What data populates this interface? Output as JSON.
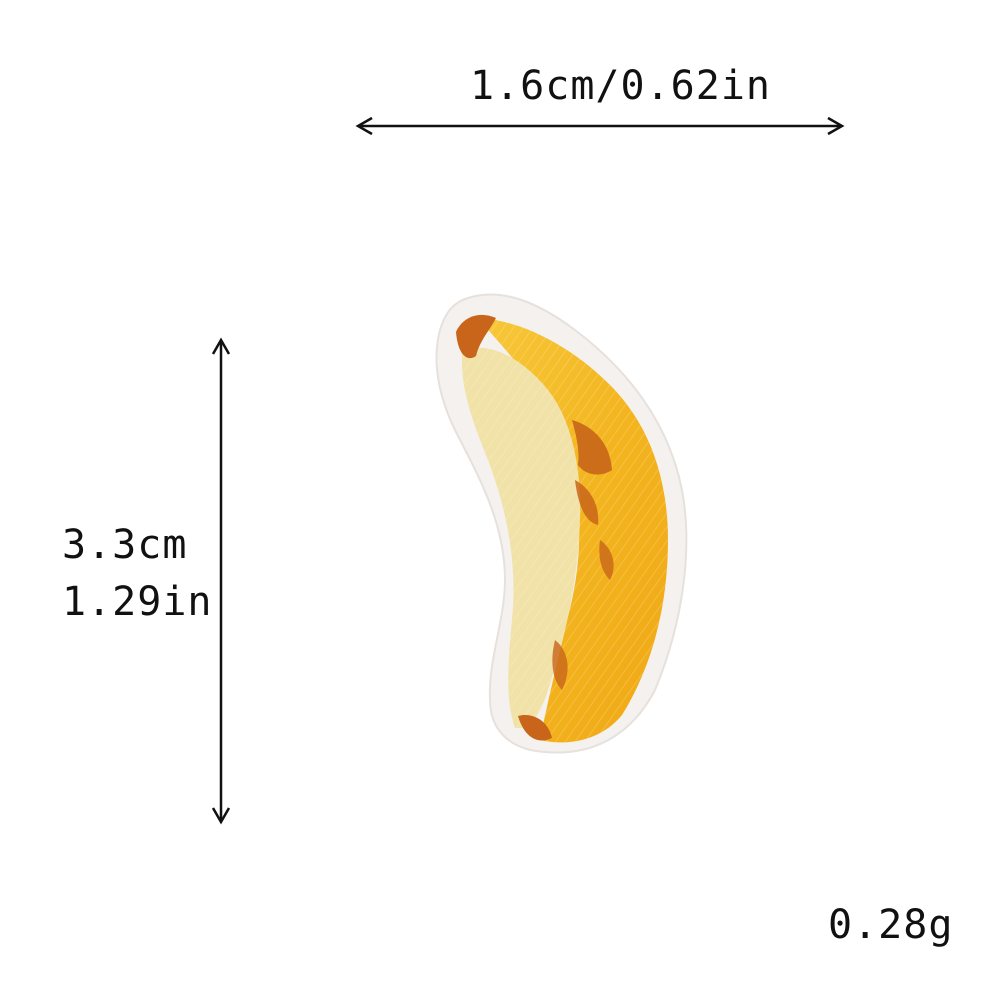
{
  "dimensions": {
    "width_label": "1.6cm/0.62in",
    "height_label_cm": "3.3cm",
    "height_label_in": "1.29in",
    "weight_label": "0.28g"
  },
  "product": {
    "icon": "banana-patch-icon",
    "colors": {
      "backing": "#f4f1ee",
      "peel_yellow": "#f2b51c",
      "peel_light": "#f7c83a",
      "flesh_cream": "#f1e2a8",
      "stem_brown": "#c8651a"
    }
  }
}
